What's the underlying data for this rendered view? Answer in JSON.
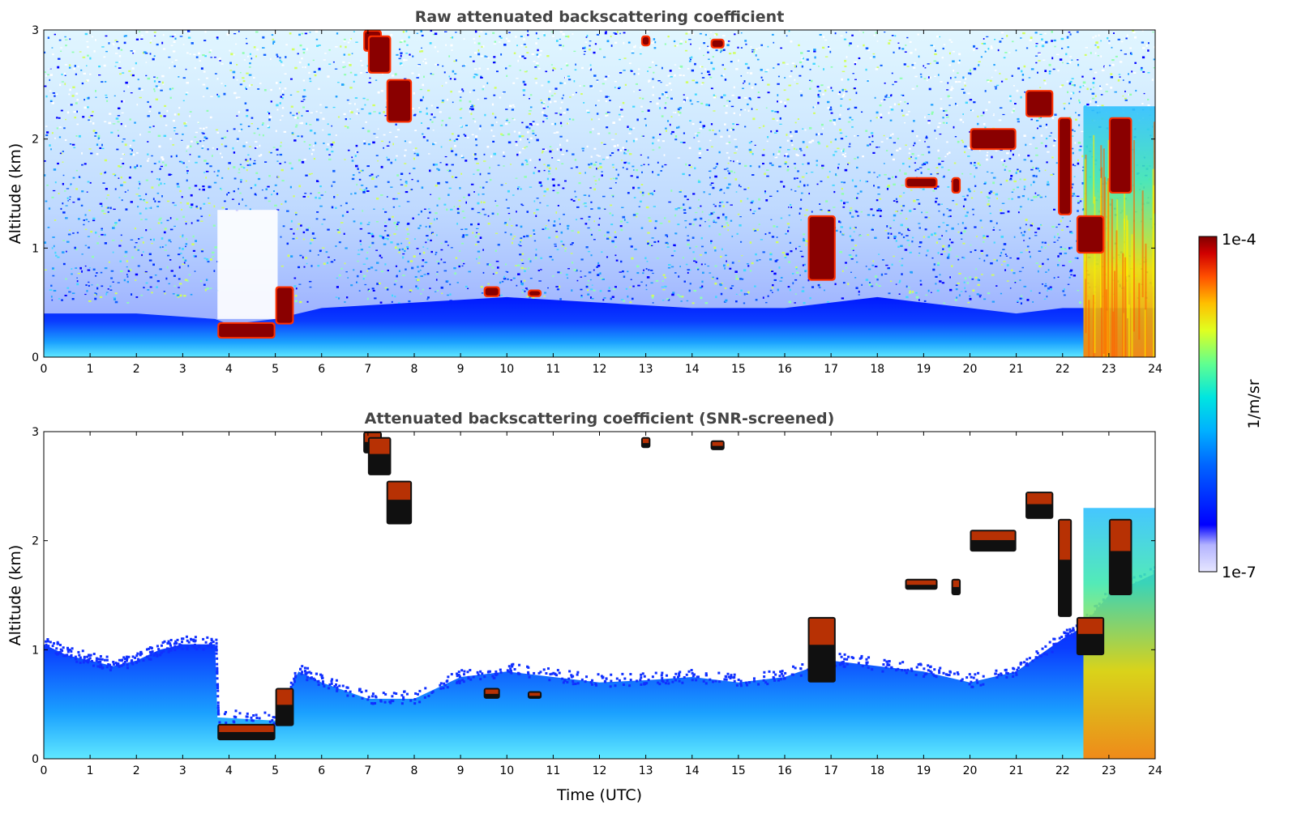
{
  "chart_data": [
    {
      "type": "heatmap",
      "title": "Raw attenuated backscattering coefficient",
      "xlabel": "",
      "ylabel": "Altitude (km)",
      "xlim": [
        0,
        24
      ],
      "ylim": [
        0,
        3
      ],
      "x_ticks": [
        "0",
        "1",
        "2",
        "3",
        "4",
        "5",
        "6",
        "7",
        "8",
        "9",
        "10",
        "11",
        "12",
        "13",
        "14",
        "15",
        "16",
        "17",
        "18",
        "19",
        "20",
        "21",
        "22",
        "23",
        "24"
      ],
      "y_ticks": [
        "0",
        "1",
        "2",
        "3"
      ],
      "color_scale": "log",
      "features": {
        "boundary_layer_top_km": [
          [
            0,
            0.4
          ],
          [
            2,
            0.4
          ],
          [
            3.7,
            0.35
          ],
          [
            4,
            0.3
          ],
          [
            5,
            0.35
          ],
          [
            6,
            0.45
          ],
          [
            8,
            0.5
          ],
          [
            10,
            0.55
          ],
          [
            12,
            0.5
          ],
          [
            14,
            0.45
          ],
          [
            16,
            0.45
          ],
          [
            18,
            0.55
          ],
          [
            20,
            0.45
          ],
          [
            21,
            0.4
          ],
          [
            22,
            0.45
          ],
          [
            24,
            0.45
          ]
        ],
        "clouds": [
          {
            "x": [
              3.75,
              5.0
            ],
            "y": [
              0.17,
              0.32
            ],
            "level": "high"
          },
          {
            "x": [
              5.0,
              5.4
            ],
            "y": [
              0.3,
              0.65
            ],
            "level": "high"
          },
          {
            "x": [
              6.9,
              7.3
            ],
            "y": [
              2.8,
              3.0
            ],
            "level": "high"
          },
          {
            "x": [
              7.0,
              7.5
            ],
            "y": [
              2.6,
              2.95
            ],
            "level": "high"
          },
          {
            "x": [
              7.4,
              7.95
            ],
            "y": [
              2.15,
              2.55
            ],
            "level": "high"
          },
          {
            "x": [
              9.5,
              9.85
            ],
            "y": [
              0.55,
              0.65
            ],
            "level": "high"
          },
          {
            "x": [
              10.45,
              10.75
            ],
            "y": [
              0.55,
              0.62
            ],
            "level": "high"
          },
          {
            "x": [
              12.9,
              13.1
            ],
            "y": [
              2.85,
              2.95
            ],
            "level": "high"
          },
          {
            "x": [
              14.4,
              14.7
            ],
            "y": [
              2.83,
              2.92
            ],
            "level": "high"
          },
          {
            "x": [
              16.5,
              17.1
            ],
            "y": [
              0.7,
              1.3
            ],
            "level": "high"
          },
          {
            "x": [
              18.6,
              19.3
            ],
            "y": [
              1.55,
              1.65
            ],
            "level": "high"
          },
          {
            "x": [
              19.6,
              19.8
            ],
            "y": [
              1.5,
              1.65
            ],
            "level": "high"
          },
          {
            "x": [
              20.0,
              21.0
            ],
            "y": [
              1.9,
              2.1
            ],
            "level": "high"
          },
          {
            "x": [
              21.2,
              21.8
            ],
            "y": [
              2.2,
              2.45
            ],
            "level": "high"
          },
          {
            "x": [
              21.9,
              22.2
            ],
            "y": [
              1.3,
              2.2
            ],
            "level": "high"
          },
          {
            "x": [
              22.3,
              22.9
            ],
            "y": [
              0.95,
              1.3
            ],
            "level": "high"
          },
          {
            "x": [
              23.0,
              23.5
            ],
            "y": [
              1.5,
              2.2
            ],
            "level": "high"
          }
        ],
        "precipitation_band": {
          "x": [
            22.45,
            24.0
          ],
          "y": [
            0.0,
            2.3
          ]
        }
      }
    },
    {
      "type": "heatmap",
      "title": "Attenuated backscattering coefficient (SNR-screened)",
      "xlabel": "Time (UTC)",
      "ylabel": "Altitude (km)",
      "xlim": [
        0,
        24
      ],
      "ylim": [
        0,
        3
      ],
      "x_ticks": [
        "0",
        "1",
        "2",
        "3",
        "4",
        "5",
        "6",
        "7",
        "8",
        "9",
        "10",
        "11",
        "12",
        "13",
        "14",
        "15",
        "16",
        "17",
        "18",
        "19",
        "20",
        "21",
        "22",
        "23",
        "24"
      ],
      "y_ticks": [
        "0",
        "1",
        "2",
        "3"
      ],
      "color_scale": "log",
      "screened_aerosol_top_km": [
        [
          0,
          1.05
        ],
        [
          0.5,
          0.95
        ],
        [
          1,
          0.9
        ],
        [
          1.5,
          0.85
        ],
        [
          2,
          0.9
        ],
        [
          2.5,
          1.0
        ],
        [
          3,
          1.05
        ],
        [
          3.7,
          1.05
        ],
        [
          3.75,
          0.38
        ],
        [
          5,
          0.35
        ],
        [
          5.5,
          0.8
        ],
        [
          6,
          0.7
        ],
        [
          7,
          0.55
        ],
        [
          8,
          0.55
        ],
        [
          9,
          0.75
        ],
        [
          10,
          0.8
        ],
        [
          11,
          0.75
        ],
        [
          12,
          0.7
        ],
        [
          13,
          0.72
        ],
        [
          14,
          0.75
        ],
        [
          15,
          0.7
        ],
        [
          16,
          0.75
        ],
        [
          17,
          0.9
        ],
        [
          18,
          0.85
        ],
        [
          19,
          0.8
        ],
        [
          20,
          0.7
        ],
        [
          21,
          0.8
        ],
        [
          22,
          1.1
        ],
        [
          22.4,
          1.2
        ],
        [
          23,
          1.5
        ],
        [
          24,
          1.7
        ]
      ]
    }
  ],
  "colorbar": {
    "label": "1/m/sr",
    "min_label": "1e-7",
    "max_label": "1e-4",
    "colors": [
      "#e6e6ff",
      "#b3b3ff",
      "#0000ff",
      "#0050ff",
      "#00a0ff",
      "#00e5e0",
      "#40ffb0",
      "#a0ff60",
      "#f0ff00",
      "#ffc000",
      "#ff6000",
      "#e00000",
      "#900000"
    ]
  }
}
